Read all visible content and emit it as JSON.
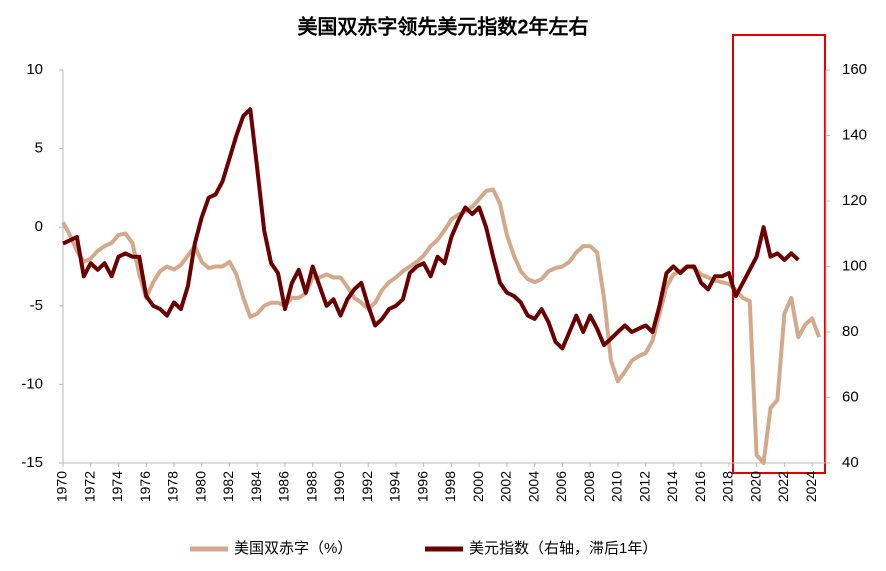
{
  "chart_data": {
    "type": "line",
    "title": "美国双赤字领先美元指数2年左右",
    "x": [
      1970,
      1970.5,
      1971,
      1971.5,
      1972,
      1972.5,
      1973,
      1973.5,
      1974,
      1974.5,
      1975,
      1975.5,
      1976,
      1976.5,
      1977,
      1977.5,
      1978,
      1978.5,
      1979,
      1979.5,
      1980,
      1980.5,
      1981,
      1981.5,
      1982,
      1982.5,
      1983,
      1983.5,
      1984,
      1984.5,
      1985,
      1985.5,
      1986,
      1986.5,
      1987,
      1987.5,
      1988,
      1988.5,
      1989,
      1989.5,
      1990,
      1990.5,
      1991,
      1991.5,
      1992,
      1992.5,
      1993,
      1993.5,
      1994,
      1994.5,
      1995,
      1995.5,
      1996,
      1996.5,
      1997,
      1997.5,
      1998,
      1998.5,
      1999,
      1999.5,
      2000,
      2000.5,
      2001,
      2001.5,
      2002,
      2002.5,
      2003,
      2003.5,
      2004,
      2004.5,
      2005,
      2005.5,
      2006,
      2006.5,
      2007,
      2007.5,
      2008,
      2008.5,
      2009,
      2009.5,
      2010,
      2010.5,
      2011,
      2011.5,
      2012,
      2012.5,
      2013,
      2013.5,
      2014,
      2014.5,
      2015,
      2015.5,
      2016,
      2016.5,
      2017,
      2017.5,
      2018,
      2018.5,
      2019,
      2019.5,
      2020,
      2020.5,
      2021,
      2021.5,
      2022,
      2022.5,
      2023,
      2023.5,
      2024,
      2024.5
    ],
    "series": [
      {
        "name": "美国双赤字（%）",
        "color": "#d4a88a",
        "axis": "y",
        "values": [
          0.3,
          -0.5,
          -1.5,
          -2.2,
          -2,
          -1.5,
          -1.2,
          -1,
          -0.5,
          -0.4,
          -1,
          -3,
          -4.5,
          -3.5,
          -2.8,
          -2.5,
          -2.7,
          -2.4,
          -1.8,
          -1.2,
          -2.2,
          -2.6,
          -2.5,
          -2.5,
          -2.2,
          -3,
          -4.5,
          -5.7,
          -5.5,
          -5,
          -4.8,
          -4.8,
          -5,
          -4.5,
          -4.5,
          -4.2,
          -3.2,
          -3.2,
          -3,
          -3.2,
          -3.2,
          -3.8,
          -4.5,
          -4.8,
          -5.2,
          -4.8,
          -4,
          -3.5,
          -3.2,
          -2.8,
          -2.5,
          -2.2,
          -1.8,
          -1.2,
          -0.8,
          -0.2,
          0.5,
          0.8,
          1,
          1.3,
          1.8,
          2.3,
          2.4,
          1.5,
          -0.5,
          -1.8,
          -2.8,
          -3.3,
          -3.5,
          -3.3,
          -2.8,
          -2.6,
          -2.5,
          -2.2,
          -1.6,
          -1.2,
          -1.2,
          -1.6,
          -4.5,
          -8.5,
          -9.8,
          -9.2,
          -8.5,
          -8.2,
          -8,
          -7.2,
          -5.5,
          -3.8,
          -3,
          -2.8,
          -2.5,
          -2.6,
          -3,
          -3.2,
          -3.4,
          -3.5,
          -3.6,
          -4,
          -4.5,
          -4.7,
          -14.5,
          -15,
          -11.5,
          -11,
          -5.5,
          -4.5,
          -7,
          -6.2,
          -5.8,
          -7
        ]
      },
      {
        "name": "美元指数（右轴，滞后1年）",
        "color": "#6b0000",
        "axis": "y2",
        "values": [
          107,
          108,
          109,
          97,
          101,
          99,
          101,
          97,
          103,
          104,
          103,
          103,
          91,
          88,
          87,
          85,
          89,
          87,
          94,
          107,
          115,
          121,
          122,
          126,
          133,
          140,
          146,
          148,
          130,
          111,
          101,
          98,
          87,
          95,
          99,
          92,
          100,
          94,
          88,
          90,
          85,
          90,
          93,
          95,
          88,
          82,
          84,
          87,
          88,
          90,
          98,
          100,
          101,
          97,
          103,
          101,
          109,
          114,
          118,
          116,
          118,
          112,
          103,
          95,
          92,
          91,
          89,
          85,
          84,
          87,
          83,
          77,
          75,
          80,
          85,
          80,
          85,
          81,
          76,
          78,
          80,
          82,
          80,
          81,
          82,
          80,
          88,
          98,
          100,
          98,
          100,
          100,
          95,
          93,
          97,
          97,
          98,
          91,
          95,
          99,
          103,
          112,
          103,
          104,
          102,
          104,
          102,
          null,
          null,
          null
        ]
      }
    ],
    "xlim": [
      1970,
      2025
    ],
    "xticks": [
      1970,
      1972,
      1974,
      1976,
      1978,
      1980,
      1982,
      1984,
      1986,
      1988,
      1990,
      1992,
      1994,
      1996,
      1998,
      2000,
      2002,
      2004,
      2006,
      2008,
      2010,
      2012,
      2014,
      2016,
      2018,
      2020,
      2022,
      2024
    ],
    "ylim": [
      -15,
      10
    ],
    "yticks": [
      -15,
      -10,
      -5,
      0,
      5,
      10
    ],
    "y2lim": [
      40,
      160
    ],
    "y2ticks": [
      40,
      60,
      80,
      100,
      120,
      140,
      160
    ],
    "negative_label_color": "#e00000",
    "grid": false,
    "legend": "bottom"
  }
}
